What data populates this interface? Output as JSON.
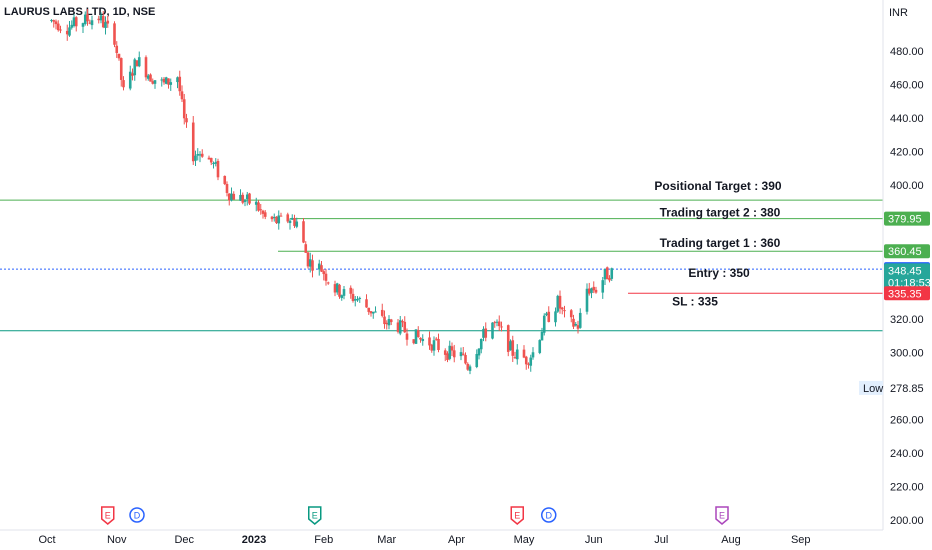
{
  "header": {
    "title": "LAURUS LABS LTD, 1D, NSE",
    "currency": "INR"
  },
  "colors": {
    "up": "#26a69a",
    "down": "#ef5350",
    "target": "#4caf50",
    "entry": "#2962ff",
    "stop": "#f23645",
    "bubble_red": "#f23645",
    "bubble_blue": "#2962ff",
    "bubble_green": "#089981",
    "bubble_purple": "#ab47bc"
  },
  "chart_data": {
    "type": "candlestick",
    "title": "LAURUS LABS LTD, 1D, NSE",
    "ylabel": "INR",
    "ylim": [
      195,
      505
    ],
    "y_ticks": [
      "480.00",
      "460.00",
      "440.00",
      "420.00",
      "400.00",
      "320.00",
      "300.00",
      "260.00",
      "240.00",
      "220.00",
      "200.00"
    ],
    "x_ticks": [
      "Oct",
      "Nov",
      "Dec",
      "2023",
      "Feb",
      "Mar",
      "Apr",
      "May",
      "Jun",
      "Jul",
      "Aug",
      "Sep"
    ],
    "price_path": [
      [
        "2022-10-03",
        498
      ],
      [
        "2022-10-10",
        494
      ],
      [
        "2022-10-17",
        498
      ],
      [
        "2022-10-24",
        500
      ],
      [
        "2022-10-31",
        488
      ],
      [
        "2022-11-04",
        455
      ],
      [
        "2022-11-10",
        475
      ],
      [
        "2022-11-16",
        465
      ],
      [
        "2022-11-22",
        460
      ],
      [
        "2022-11-28",
        465
      ],
      [
        "2022-12-01",
        438
      ],
      [
        "2022-12-05",
        418
      ],
      [
        "2022-12-09",
        420
      ],
      [
        "2022-12-15",
        410
      ],
      [
        "2022-12-21",
        395
      ],
      [
        "2022-12-26",
        392
      ],
      [
        "2023-01-02",
        388
      ],
      [
        "2023-01-06",
        380
      ],
      [
        "2023-01-12",
        378
      ],
      [
        "2023-01-17",
        380
      ],
      [
        "2023-01-20",
        378
      ],
      [
        "2023-01-25",
        355
      ],
      [
        "2023-01-31",
        350
      ],
      [
        "2023-02-06",
        338
      ],
      [
        "2023-02-10",
        335
      ],
      [
        "2023-02-16",
        332
      ],
      [
        "2023-02-22",
        325
      ],
      [
        "2023-02-28",
        318
      ],
      [
        "2023-03-06",
        316
      ],
      [
        "2023-03-10",
        312
      ],
      [
        "2023-03-16",
        308
      ],
      [
        "2023-03-22",
        305
      ],
      [
        "2023-03-28",
        300
      ],
      [
        "2023-04-03",
        298
      ],
      [
        "2023-04-06",
        292
      ],
      [
        "2023-04-12",
        308
      ],
      [
        "2023-04-17",
        318
      ],
      [
        "2023-04-21",
        312
      ],
      [
        "2023-04-26",
        300
      ],
      [
        "2023-05-02",
        296
      ],
      [
        "2023-05-05",
        300
      ],
      [
        "2023-05-10",
        318
      ],
      [
        "2023-05-16",
        330
      ],
      [
        "2023-05-20",
        318
      ],
      [
        "2023-05-25",
        316
      ],
      [
        "2023-05-29",
        338
      ],
      [
        "2023-06-02",
        338
      ],
      [
        "2023-06-06",
        346
      ],
      [
        "2023-06-09",
        348
      ]
    ],
    "levels": [
      {
        "name": "Positional Target : 390",
        "value": 391,
        "kind": "target"
      },
      {
        "name": "Trading target 2 : 380",
        "value": 379.95,
        "kind": "target"
      },
      {
        "name": "Trading target 1 : 360",
        "value": 360.45,
        "kind": "target"
      },
      {
        "name": "Entry : 350",
        "value": 349.8,
        "kind": "entry"
      },
      {
        "name": "SL : 335",
        "value": 335.35,
        "kind": "stop"
      },
      {
        "name": "",
        "value": 313,
        "kind": "support"
      }
    ],
    "price_tags": [
      {
        "text": "379.95",
        "value": 379.95,
        "color": "#4caf50"
      },
      {
        "text": "360.45",
        "value": 360.45,
        "color": "#4caf50"
      },
      {
        "text": "349.80",
        "value": 349.8,
        "color": "#2962ff"
      },
      {
        "text": "348.45",
        "value": 348.45,
        "color": "#26a69a",
        "countdown": "01:18:53"
      },
      {
        "text": "335.35",
        "value": 335.35,
        "color": "#f23645"
      }
    ],
    "low": {
      "label": "Low",
      "value": "278.85"
    },
    "event_markers": [
      {
        "label": "E",
        "date": "2022-10-28",
        "kind": "earnings-red"
      },
      {
        "label": "D",
        "date": "2022-11-10",
        "kind": "dividend"
      },
      {
        "label": "E",
        "date": "2023-01-28",
        "kind": "earnings-green"
      },
      {
        "label": "E",
        "date": "2023-04-28",
        "kind": "earnings-red"
      },
      {
        "label": "D",
        "date": "2023-05-12",
        "kind": "dividend"
      },
      {
        "label": "E",
        "date": "2023-07-28",
        "kind": "earnings-future"
      }
    ]
  }
}
